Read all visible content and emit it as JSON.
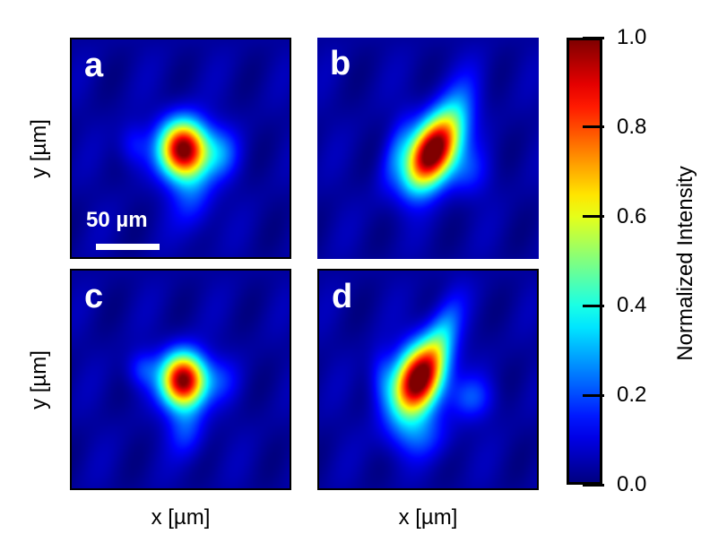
{
  "chart_data": {
    "type": "heatmap",
    "panels": [
      {
        "label": "a",
        "scale_bar": "50 µm"
      },
      {
        "label": "b"
      },
      {
        "label": "c"
      },
      {
        "label": "d"
      }
    ],
    "xlabel": "x [µm]",
    "ylabel": "y [µm]",
    "colormap": "jet",
    "colorbar": {
      "label": "Normalized Intensity",
      "range": [
        0.0,
        1.0
      ],
      "ticks": [
        "0.0",
        "0.2",
        "0.4",
        "0.6",
        "0.8",
        "1.0"
      ]
    },
    "colors": {
      "background_low": "#00008f",
      "peak": "#8b0000"
    }
  }
}
